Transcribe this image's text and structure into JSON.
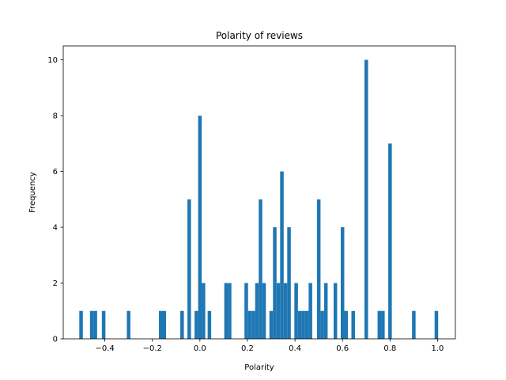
{
  "chart_data": {
    "type": "bar",
    "title": "Polarity of reviews",
    "xlabel": "Polarity",
    "ylabel": "Frequency",
    "xlim": [
      -0.575,
      1.075
    ],
    "ylim": [
      0,
      10.5
    ],
    "bin_width": 0.015,
    "xticks": [
      -0.4,
      -0.2,
      0.0,
      0.2,
      0.4,
      0.6,
      0.8,
      1.0
    ],
    "xtick_labels": [
      "−0.4",
      "−0.2",
      "0.0",
      "0.2",
      "0.4",
      "0.6",
      "0.8",
      "1.0"
    ],
    "yticks": [
      0,
      2,
      4,
      6,
      8,
      10
    ],
    "ytick_labels": [
      "0",
      "2",
      "4",
      "6",
      "8",
      "10"
    ],
    "bars": [
      {
        "x": -0.5,
        "value": 1
      },
      {
        "x": -0.455,
        "value": 1
      },
      {
        "x": -0.44,
        "value": 1
      },
      {
        "x": -0.405,
        "value": 1
      },
      {
        "x": -0.3,
        "value": 1
      },
      {
        "x": -0.165,
        "value": 1
      },
      {
        "x": -0.15,
        "value": 1
      },
      {
        "x": -0.075,
        "value": 1
      },
      {
        "x": -0.045,
        "value": 5
      },
      {
        "x": -0.015,
        "value": 1
      },
      {
        "x": 0.0,
        "value": 8
      },
      {
        "x": 0.015,
        "value": 2
      },
      {
        "x": 0.04,
        "value": 1
      },
      {
        "x": 0.11,
        "value": 2
      },
      {
        "x": 0.125,
        "value": 2
      },
      {
        "x": 0.195,
        "value": 2
      },
      {
        "x": 0.21,
        "value": 1
      },
      {
        "x": 0.225,
        "value": 1
      },
      {
        "x": 0.24,
        "value": 2
      },
      {
        "x": 0.255,
        "value": 5
      },
      {
        "x": 0.27,
        "value": 2
      },
      {
        "x": 0.3,
        "value": 1
      },
      {
        "x": 0.315,
        "value": 4
      },
      {
        "x": 0.33,
        "value": 2
      },
      {
        "x": 0.345,
        "value": 6
      },
      {
        "x": 0.36,
        "value": 2
      },
      {
        "x": 0.375,
        "value": 4
      },
      {
        "x": 0.405,
        "value": 2
      },
      {
        "x": 0.42,
        "value": 1
      },
      {
        "x": 0.435,
        "value": 1
      },
      {
        "x": 0.45,
        "value": 1
      },
      {
        "x": 0.465,
        "value": 2
      },
      {
        "x": 0.5,
        "value": 5
      },
      {
        "x": 0.515,
        "value": 1
      },
      {
        "x": 0.53,
        "value": 2
      },
      {
        "x": 0.57,
        "value": 2
      },
      {
        "x": 0.6,
        "value": 4
      },
      {
        "x": 0.615,
        "value": 1
      },
      {
        "x": 0.645,
        "value": 1
      },
      {
        "x": 0.7,
        "value": 10
      },
      {
        "x": 0.755,
        "value": 1
      },
      {
        "x": 0.77,
        "value": 1
      },
      {
        "x": 0.8,
        "value": 7
      },
      {
        "x": 0.9,
        "value": 1
      },
      {
        "x": 0.995,
        "value": 1
      }
    ],
    "bar_color": "#1f77b4",
    "grid": false
  }
}
